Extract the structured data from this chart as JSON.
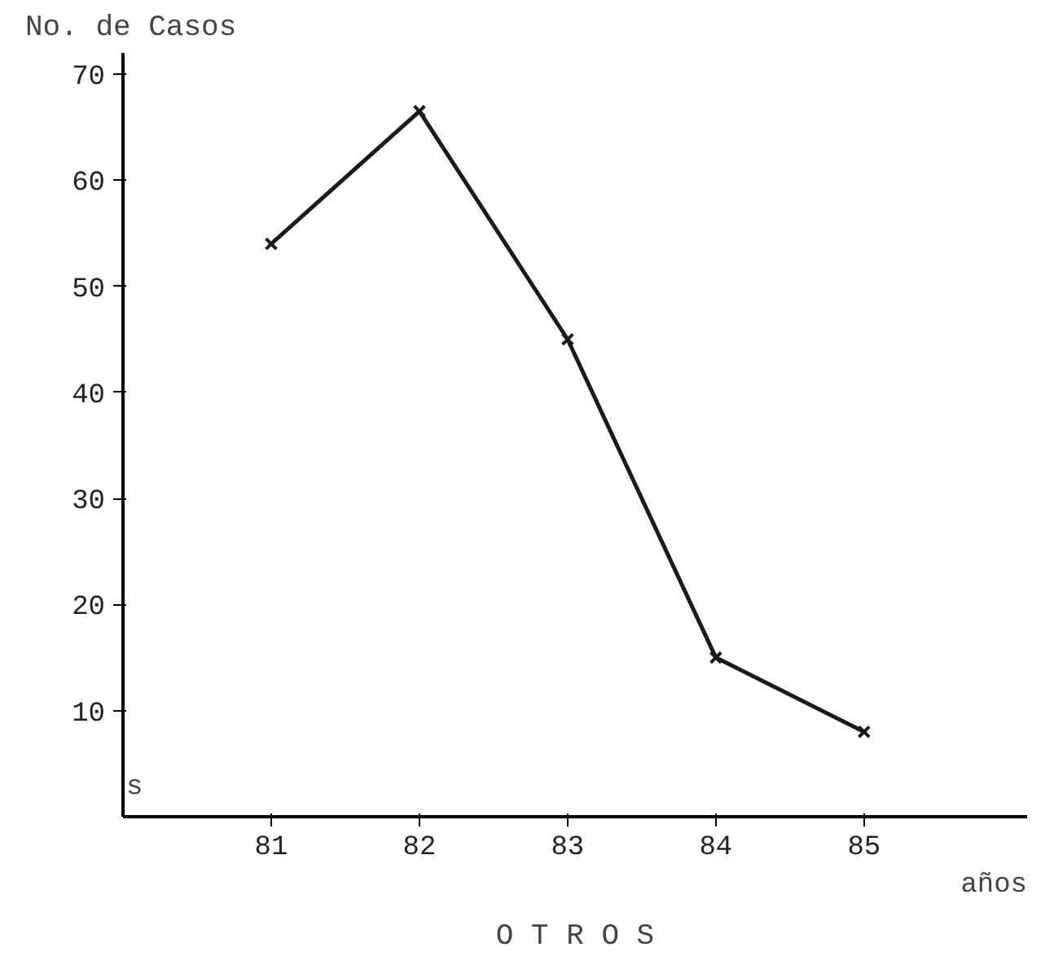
{
  "chart_data": {
    "type": "line",
    "title": "O T R O S",
    "ylabel": "No. de Casos",
    "xlabel": "años",
    "annotations": [
      "s"
    ],
    "x": [
      81,
      82,
      83,
      84,
      85
    ],
    "values": [
      54,
      66.5,
      45,
      15,
      8
    ],
    "color": "#1a1a1a",
    "marker": "cross",
    "line_style": "solid",
    "xlim": [
      80,
      86.1
    ],
    "ylim": [
      0,
      72
    ],
    "xticks": [
      81,
      82,
      83,
      84,
      85
    ],
    "yticks": [
      10,
      20,
      30,
      40,
      50,
      60,
      70
    ],
    "grid": false
  }
}
